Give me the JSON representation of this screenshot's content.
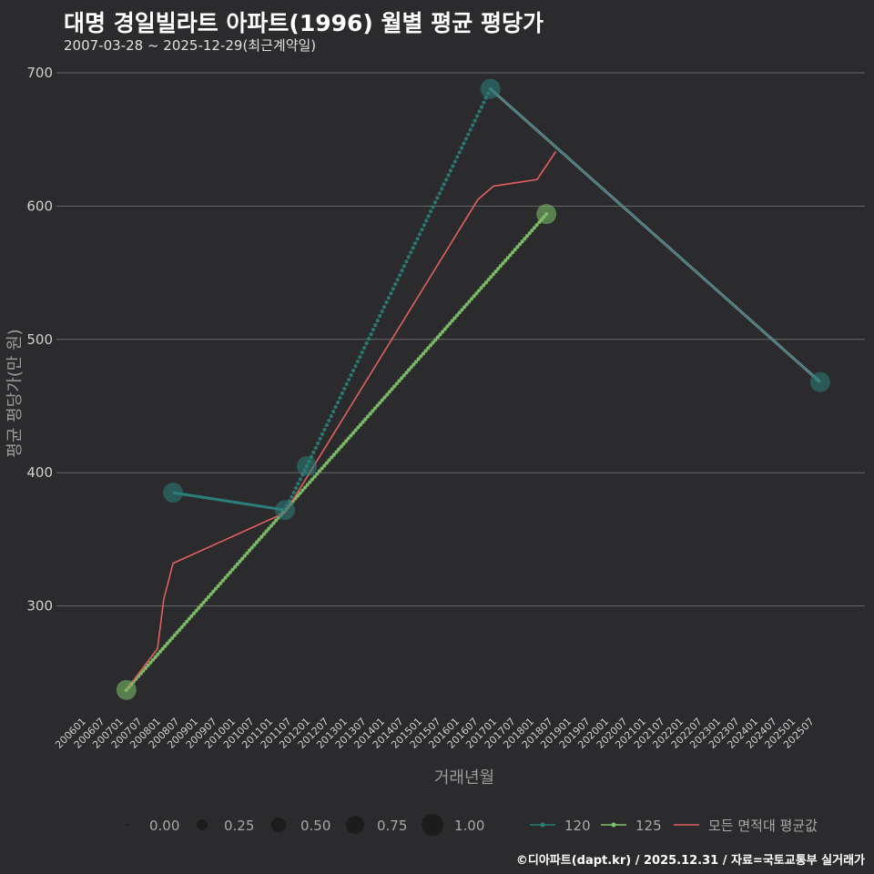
{
  "title": "대명 경일빌라트 아파트(1996) 월별 평균 평당가",
  "subtitle": "2007-03-28 ~ 2025-12-29(최근계약일)",
  "credit": "©디아파트(dapt.kr) / 2025.12.31 / 자료=국토교통부 실거래가",
  "colors": {
    "background": "#2b2b2d",
    "grid": "#6a6a6a",
    "series_120": "#2a7f7a",
    "series_125": "#7fc46a",
    "series_avg": "#e06060",
    "connector": "#8a9aa0"
  },
  "chart_data": {
    "type": "line",
    "xlabel": "거래년월",
    "ylabel": "평균 평당가(만 원)",
    "ylim": [
      225,
      705
    ],
    "yticks": [
      300,
      400,
      500,
      600,
      700
    ],
    "x_range": [
      "2006-01",
      "2026-03"
    ],
    "xticks": [
      "200601",
      "200607",
      "200701",
      "200707",
      "200801",
      "200807",
      "200901",
      "200907",
      "201001",
      "201007",
      "201101",
      "201107",
      "201201",
      "201207",
      "201301",
      "201307",
      "201401",
      "201407",
      "201501",
      "201507",
      "201601",
      "201607",
      "201701",
      "201707",
      "201801",
      "201807",
      "201901",
      "201907",
      "202001",
      "202007",
      "202101",
      "202107",
      "202201",
      "202207",
      "202301",
      "202307",
      "202401",
      "202407",
      "202501",
      "202507"
    ],
    "series": [
      {
        "name": "120",
        "points": [
          {
            "date": "2008-06",
            "value": 385,
            "size": 0.6
          },
          {
            "date": "2011-06",
            "value": 372,
            "size": 0.6
          },
          {
            "date": "2012-01",
            "value": 405,
            "size": 0.6
          },
          {
            "date": "2016-12",
            "value": 688,
            "size": 0.6
          },
          {
            "date": "2025-10",
            "value": 468,
            "size": 0.6
          }
        ]
      },
      {
        "name": "125",
        "points": [
          {
            "date": "2007-03",
            "value": 237,
            "size": 0.6
          },
          {
            "date": "2018-06",
            "value": 594,
            "size": 0.6
          }
        ]
      },
      {
        "name": "모든 면적대 평균값",
        "points": [
          {
            "date": "2007-03",
            "value": 237
          },
          {
            "date": "2008-01",
            "value": 268
          },
          {
            "date": "2008-03",
            "value": 305
          },
          {
            "date": "2008-06",
            "value": 332
          },
          {
            "date": "2011-06",
            "value": 370
          },
          {
            "date": "2016-08",
            "value": 605
          },
          {
            "date": "2017-01",
            "value": 615
          },
          {
            "date": "2018-03",
            "value": 620
          },
          {
            "date": "2018-09",
            "value": 641
          }
        ]
      }
    ],
    "size_legend": [
      "0.00",
      "0.25",
      "0.50",
      "0.75",
      "1.00"
    ],
    "legend": [
      "120",
      "125",
      "모든 면적대 평균값"
    ]
  }
}
